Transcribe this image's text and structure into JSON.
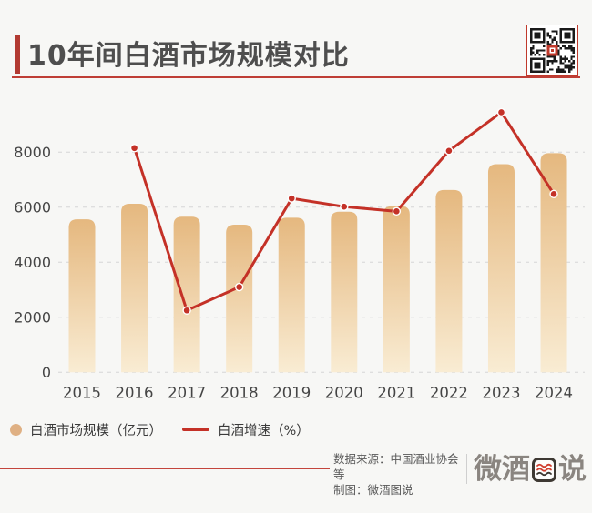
{
  "header": {
    "title": "10年间白酒市场规模对比"
  },
  "colors": {
    "background": "#f7f7f5",
    "accent_red": "#b23a32",
    "underline_red": "#bf3e36",
    "line_red": "#c43127",
    "bar_top": "#e5b87f",
    "bar_bottom": "#f9ecd3",
    "legend_dot": "#dfb083",
    "grid": "#d6d6d6",
    "axis_text": "#454545",
    "qr_center_red": "#c0392b"
  },
  "chart_data": {
    "type": "bar+line",
    "title": "10年间白酒市场规模对比",
    "categories": [
      "2015",
      "2016",
      "2017",
      "2018",
      "2019",
      "2020",
      "2021",
      "2022",
      "2023",
      "2024"
    ],
    "series": [
      {
        "name": "白酒市场规模（亿元）",
        "type": "bar",
        "values": [
          5559,
          6126,
          5654,
          5364,
          5618,
          5836,
          6033,
          6627,
          7563,
          7964
        ]
      },
      {
        "name": "白酒增速（%）",
        "type": "line",
        "values_pct_approx": [
          null,
          10.2,
          -7.7,
          -5.1,
          4.7,
          3.9,
          3.4,
          9.8,
          14.1,
          5.3
        ],
        "plotted_left_axis_positions": [
          null,
          8150,
          2250,
          3100,
          6320,
          6020,
          5850,
          8050,
          9450,
          6480
        ]
      }
    ],
    "y_ticks": [
      0,
      2000,
      4000,
      6000,
      8000
    ],
    "ylim": [
      0,
      10300
    ],
    "grid": "horizontal-dashed",
    "legend_position": "bottom-left"
  },
  "footer": {
    "source_label": "数据来源：中国酒业协会等",
    "credit_label": "制图：微酒图说",
    "logo_prefix": "微酒",
    "logo_boxed": "图",
    "logo_suffix": "说"
  }
}
